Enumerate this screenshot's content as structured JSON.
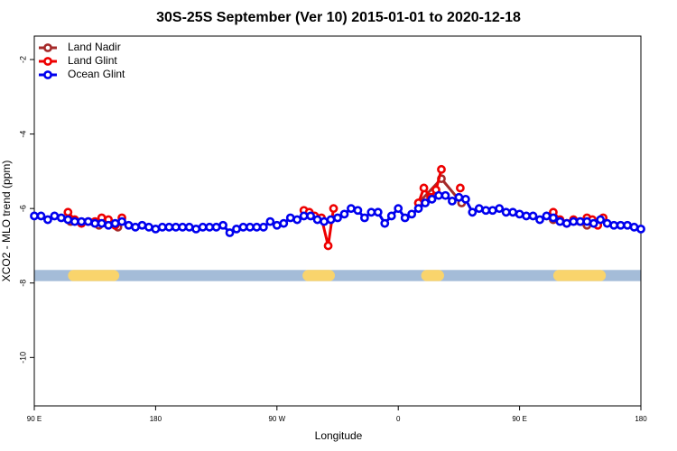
{
  "chart_data": {
    "type": "line",
    "title": "30S-25S September (Ver 10)   2015-01-01 to 2020-12-18",
    "x_label": "Longitude",
    "y_label": "XCO2 - MLO trend (ppm)",
    "xlim": [
      90,
      540
    ],
    "ylim": [
      -11.3,
      -1.37
    ],
    "xticks": [
      {
        "value": 90,
        "label": "90 E"
      },
      180,
      {
        "value": 270,
        "label": "90 W"
      },
      {
        "value": 360,
        "label": "0"
      },
      {
        "value": 450,
        "label": "90 E"
      },
      {
        "value": 540,
        "label": "180"
      }
    ],
    "yticks": [
      -2,
      -4,
      -6,
      -8,
      -10
    ],
    "legend": "top-left",
    "surface_band": {
      "ylim": [
        -7.95,
        -7.65
      ],
      "ocean_color": "#a4bcd8",
      "land_color": "#f9d46c",
      "land_spans": [
        [
          115,
          153
        ],
        [
          289,
          313
        ],
        [
          377,
          394
        ],
        [
          475,
          514
        ]
      ]
    },
    "series": [
      {
        "name": "Land Nadir",
        "color": "#a52a2a",
        "x": [
          117,
          138,
          152,
          260,
          375,
          392,
          407,
          450,
          475,
          500
        ],
        "values": [
          -6.35,
          -6.45,
          -6.5,
          null,
          -5.85,
          -5.2,
          -5.85,
          null,
          -6.3,
          -6.45
        ]
      },
      {
        "name": "Land Glint",
        "color": "#ee0000",
        "x": [
          115,
          120,
          125,
          130,
          135,
          140,
          145,
          150,
          155,
          220,
          290,
          294,
          298,
          303,
          308,
          312,
          340,
          375,
          379,
          384,
          388,
          392,
          399,
          406,
          440,
          475,
          480,
          485,
          490,
          495,
          500,
          504,
          508,
          512
        ],
        "values": [
          -6.1,
          -6.3,
          -6.4,
          -6.35,
          -6.35,
          -6.25,
          -6.3,
          -6.45,
          -6.25,
          null,
          -6.05,
          -6.1,
          -6.2,
          -6.25,
          -7.0,
          -6.0,
          null,
          -5.85,
          -5.45,
          -5.7,
          -5.5,
          -4.95,
          null,
          -5.45,
          null,
          -6.1,
          -6.3,
          -6.4,
          -6.3,
          -6.35,
          -6.25,
          -6.3,
          -6.45,
          -6.25
        ]
      },
      {
        "name": "Ocean Glint",
        "color": "#0000ee",
        "x": [
          90,
          95,
          100,
          105,
          110,
          115,
          120,
          125,
          130,
          135,
          140,
          145,
          150,
          155,
          160,
          165,
          170,
          175,
          180,
          185,
          190,
          195,
          200,
          205,
          210,
          215,
          220,
          225,
          230,
          235,
          240,
          245,
          250,
          255,
          260,
          265,
          270,
          275,
          280,
          285,
          290,
          295,
          300,
          305,
          310,
          315,
          320,
          325,
          330,
          335,
          340,
          345,
          350,
          355,
          360,
          365,
          370,
          375,
          380,
          385,
          390,
          395,
          400,
          405,
          410,
          415,
          420,
          425,
          430,
          435,
          440,
          445,
          450,
          455,
          460,
          465,
          470,
          475,
          480,
          485,
          490,
          495,
          500,
          505,
          510,
          515,
          520,
          525,
          530,
          535,
          540
        ],
        "values": [
          -6.2,
          -6.2,
          -6.3,
          -6.2,
          -6.25,
          -6.3,
          -6.35,
          -6.35,
          -6.35,
          -6.4,
          -6.4,
          -6.45,
          -6.4,
          -6.35,
          -6.45,
          -6.5,
          -6.45,
          -6.5,
          -6.55,
          -6.5,
          -6.5,
          -6.5,
          -6.5,
          -6.5,
          -6.55,
          -6.5,
          -6.5,
          -6.5,
          -6.45,
          -6.65,
          -6.55,
          -6.5,
          -6.5,
          -6.5,
          -6.5,
          -6.35,
          -6.45,
          -6.4,
          -6.25,
          -6.3,
          -6.2,
          -6.2,
          -6.3,
          -6.35,
          -6.3,
          -6.25,
          -6.15,
          -6.0,
          -6.05,
          -6.25,
          -6.1,
          -6.1,
          -6.4,
          -6.2,
          -6.0,
          -6.25,
          -6.15,
          -6.0,
          -5.85,
          -5.75,
          -5.65,
          -5.65,
          -5.8,
          -5.7,
          -5.75,
          -6.1,
          -6.0,
          -6.05,
          -6.05,
          -6.0,
          -6.1,
          -6.1,
          -6.15,
          -6.2,
          -6.2,
          -6.3,
          -6.2,
          -6.25,
          -6.35,
          -6.4,
          -6.35,
          -6.35,
          -6.35,
          -6.4,
          -6.3,
          -6.4,
          -6.45,
          -6.45,
          -6.45,
          -6.5,
          -6.55
        ]
      }
    ]
  }
}
